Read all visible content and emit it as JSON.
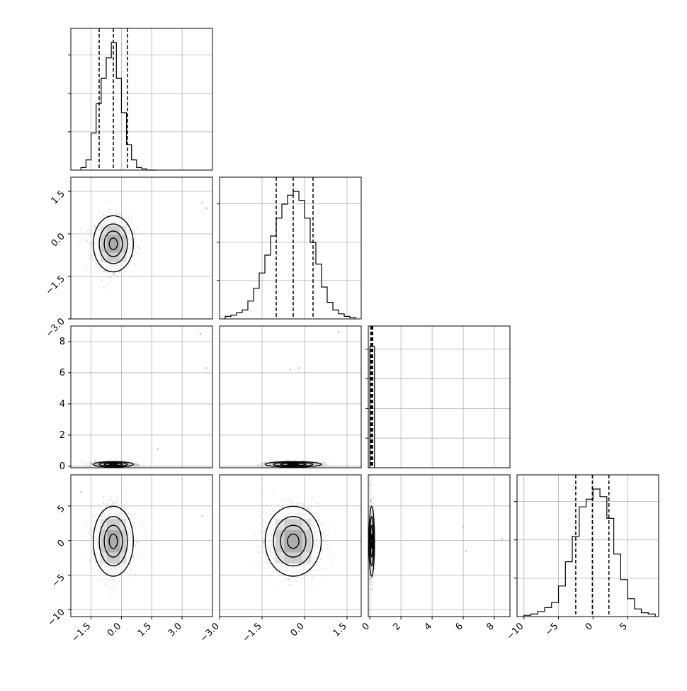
{
  "chart_data": {
    "type": "corner",
    "grid": true,
    "diagonal_style": "step-histogram with dashed lines at 16th, 50th and 84th percentiles",
    "offdiagonal_style": "2D histogram with scatter points and contour lines",
    "parameters": [
      {
        "range": [
          -2.5,
          4.5
        ],
        "ticks": [
          -1.5,
          0.0,
          1.5,
          3.0
        ],
        "tick_labels": [
          "−1.5",
          "0.0",
          "1.5",
          "3.0"
        ],
        "quantiles": [
          -1.1,
          -0.4,
          0.3
        ],
        "hist_bins": [
          -2.0,
          -1.75,
          -1.5,
          -1.25,
          -1.0,
          -0.75,
          -0.5,
          -0.25,
          0.0,
          0.25,
          0.5,
          0.75,
          1.0,
          1.25,
          1.5,
          1.75
        ],
        "hist_counts": [
          0.02,
          0.08,
          0.29,
          0.52,
          0.72,
          0.88,
          1.0,
          0.72,
          0.45,
          0.2,
          0.08,
          0.02,
          0.01,
          0.0,
          0.0
        ]
      },
      {
        "range": [
          -3.0,
          2.0
        ],
        "ticks": [
          -3.0,
          -1.5,
          0.0,
          1.5
        ],
        "tick_labels": [
          "−3.0",
          "−1.5",
          "0.0",
          "1.5"
        ],
        "quantiles": [
          -1.0,
          -0.4,
          0.3
        ],
        "hist_bins": [
          -2.8,
          -2.6,
          -2.4,
          -2.2,
          -2.0,
          -1.8,
          -1.6,
          -1.4,
          -1.2,
          -1.0,
          -0.8,
          -0.6,
          -0.4,
          -0.2,
          0.0,
          0.2,
          0.4,
          0.6,
          0.8,
          1.0,
          1.2,
          1.4,
          1.6,
          1.8
        ],
        "hist_counts": [
          0.02,
          0.03,
          0.05,
          0.07,
          0.14,
          0.24,
          0.36,
          0.5,
          0.65,
          0.79,
          0.9,
          0.97,
          1.0,
          0.93,
          0.79,
          0.6,
          0.43,
          0.25,
          0.13,
          0.07,
          0.04,
          0.02,
          0.01
        ]
      },
      {
        "range": [
          -0.1,
          9.0
        ],
        "ticks": [
          0,
          2,
          4,
          6,
          8
        ],
        "tick_labels": [
          "0",
          "2",
          "4",
          "6",
          "8"
        ],
        "quantiles": [
          0.07,
          0.12,
          0.18
        ],
        "hist_bins": [
          0.0,
          0.3
        ],
        "hist_counts": [
          0.95
        ]
      },
      {
        "range": [
          -11.0,
          9.5
        ],
        "ticks": [
          -10,
          -5,
          0,
          5
        ],
        "tick_labels": [
          "−10",
          "−5",
          "0",
          "5"
        ],
        "quantiles": [
          -2.5,
          -0.1,
          2.3
        ],
        "hist_bins": [
          -10.0,
          -9.0,
          -8.0,
          -7.0,
          -6.0,
          -5.0,
          -4.0,
          -3.0,
          -2.0,
          -1.0,
          0.0,
          1.0,
          2.0,
          3.0,
          4.0,
          5.0,
          6.0,
          7.0,
          8.0,
          9.0
        ],
        "hist_counts": [
          0.01,
          0.02,
          0.04,
          0.07,
          0.11,
          0.24,
          0.43,
          0.63,
          0.86,
          0.92,
          1.0,
          0.94,
          0.77,
          0.49,
          0.29,
          0.14,
          0.06,
          0.03,
          0.02
        ]
      }
    ],
    "diag_y_ticks": [
      {
        "count": 3,
        "max": 1.3
      },
      {
        "count": 3,
        "max": 1.2
      },
      {
        "count": 4,
        "max": 1.05
      },
      {
        "count": 3,
        "max": 1.3
      }
    ],
    "joint": [
      {
        "pair": [
          1,
          0
        ],
        "mean": [
          -0.4,
          -0.35
        ],
        "sd": [
          0.45,
          0.45
        ]
      },
      {
        "pair": [
          2,
          0
        ],
        "mean": [
          -0.4,
          0.12
        ],
        "sd": [
          0.45,
          0.08
        ]
      },
      {
        "pair": [
          2,
          1
        ],
        "mean": [
          -0.4,
          0.12
        ],
        "sd": [
          0.45,
          0.08
        ]
      },
      {
        "pair": [
          3,
          0
        ],
        "mean": [
          -0.4,
          -0.1
        ],
        "sd": [
          0.45,
          2.3
        ]
      },
      {
        "pair": [
          3,
          1
        ],
        "mean": [
          -0.4,
          -0.1
        ],
        "sd": [
          0.45,
          2.3
        ]
      },
      {
        "pair": [
          3,
          2
        ],
        "mean": [
          0.12,
          -0.1
        ],
        "sd": [
          0.08,
          2.3
        ]
      }
    ],
    "outliers": [
      {
        "panel": [
          1,
          0
        ],
        "points": [
          [
            4.0,
            1.1
          ],
          [
            4.2,
            0.9
          ]
        ]
      },
      {
        "panel": [
          2,
          0
        ],
        "points": [
          [
            4.2,
            6.3
          ],
          [
            3.9,
            8.5
          ],
          [
            1.8,
            1.1
          ]
        ]
      },
      {
        "panel": [
          2,
          1
        ],
        "points": [
          [
            -0.2,
            6.3
          ],
          [
            1.2,
            8.6
          ],
          [
            -0.5,
            6.2
          ]
        ]
      },
      {
        "panel": [
          3,
          0
        ],
        "points": [
          [
            4.0,
            3.5
          ],
          [
            -2.0,
            7.0
          ]
        ]
      },
      {
        "panel": [
          3,
          2
        ],
        "points": [
          [
            6.2,
            -1.5
          ],
          [
            6.0,
            2.0
          ],
          [
            8.5,
            0.2
          ]
        ]
      }
    ]
  }
}
